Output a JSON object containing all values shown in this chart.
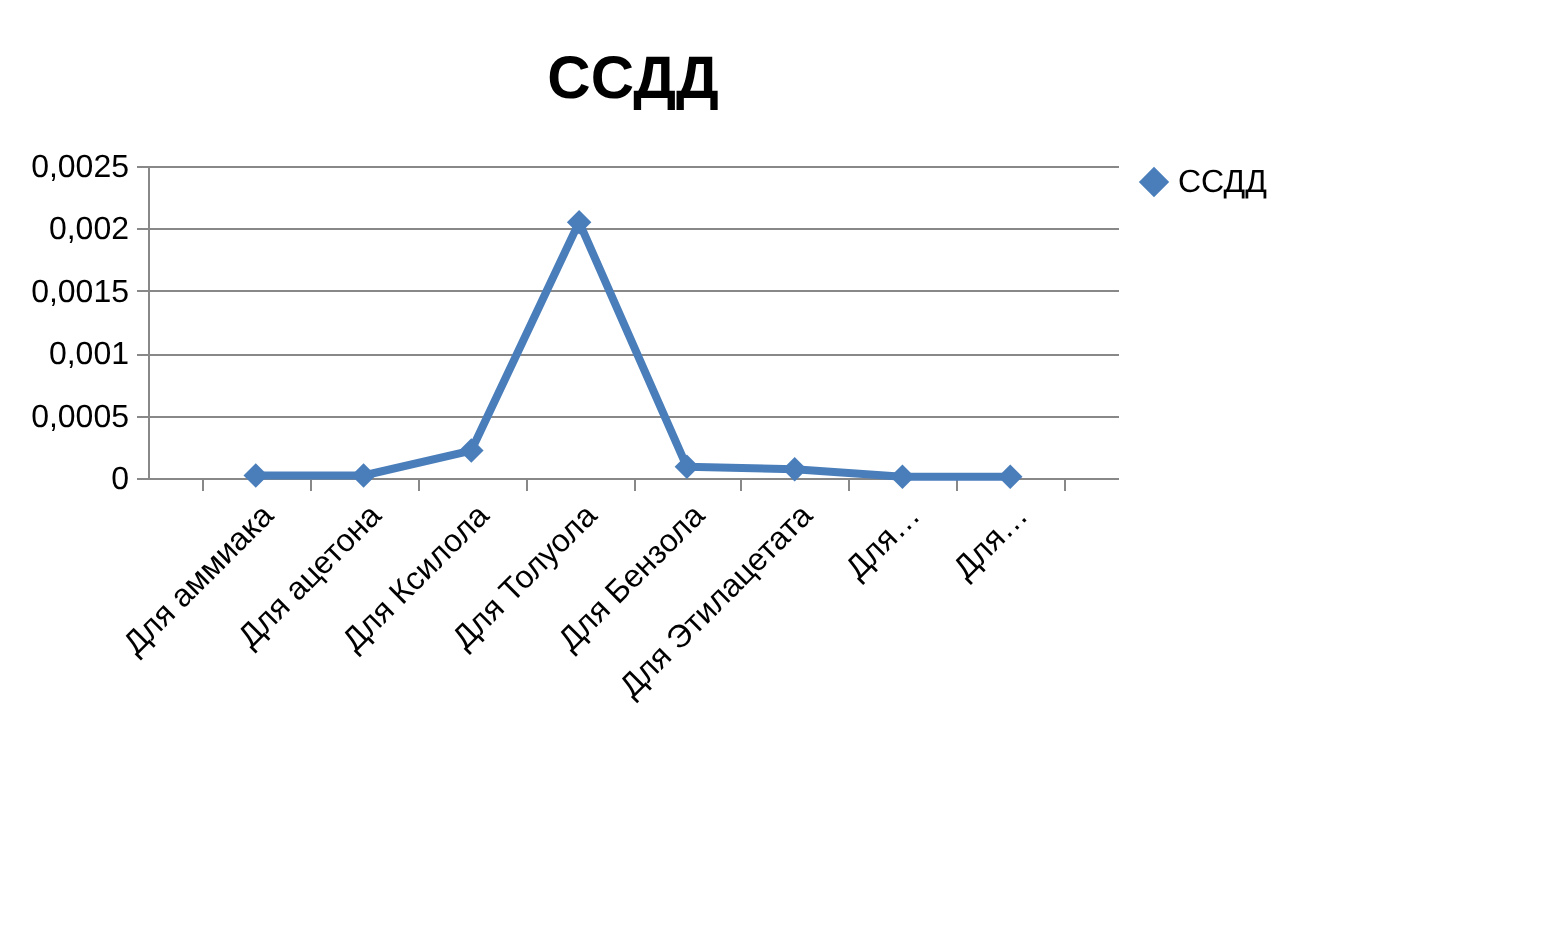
{
  "chart_data": {
    "type": "line",
    "title": "ССДД",
    "categories": [
      "Для аммиака",
      "Для ацетона",
      "Для Ксилола",
      "Для Толуола",
      "Для Бензола",
      "Для Этилацетата",
      "Для…",
      "Для…"
    ],
    "series": [
      {
        "name": "ССДД",
        "color": "#4a7ebb",
        "values": [
          2e-05,
          2e-05,
          0.00022,
          0.00205,
          9e-05,
          7e-05,
          1e-05,
          1e-05
        ]
      }
    ],
    "ylim": [
      0,
      0.0025
    ],
    "yticks": [
      {
        "value": 0,
        "label": "0"
      },
      {
        "value": 0.0005,
        "label": "0,0005"
      },
      {
        "value": 0.001,
        "label": "0,001"
      },
      {
        "value": 0.0015,
        "label": "0,0015"
      },
      {
        "value": 0.002,
        "label": "0,002"
      },
      {
        "value": 0.0025,
        "label": "0,0025"
      }
    ],
    "grid": "y",
    "legend": "right",
    "marker": "diamond",
    "line_style": "solid"
  }
}
